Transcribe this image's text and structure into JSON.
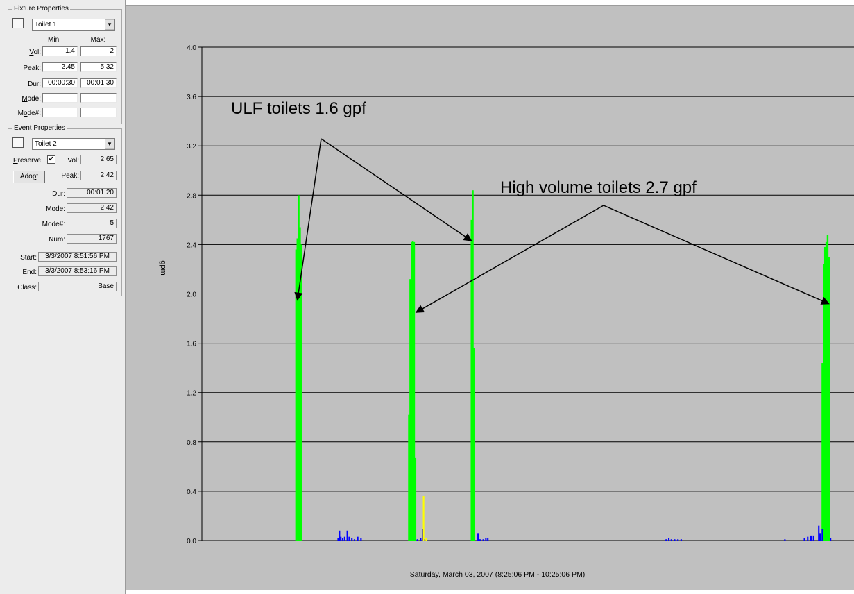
{
  "fixture_properties": {
    "title": "Fixture Properties",
    "selected_fixture": "Toilet 1",
    "min_header": "Min:",
    "max_header": "Max:",
    "vol_label": "Vol:",
    "vol_min": "1.4",
    "vol_max": "2",
    "peak_label": "Peak:",
    "peak_min": "2.45",
    "peak_max": "5.32",
    "dur_label": "Dur:",
    "dur_min": "00:00:30",
    "dur_max": "00:01:30",
    "mode_label": "Mode:",
    "mode_min": "",
    "mode_max": "",
    "mode_num_label": "Mode#:",
    "mode_num_min": "",
    "mode_num_max": ""
  },
  "event_properties": {
    "title": "Event Properties",
    "selected_event": "Toilet 2",
    "preserve_label": "Preserve",
    "preserve_checked": true,
    "vol_label": "Vol:",
    "vol": "2.65",
    "adopt_label": "Adopt",
    "peak_label": "Peak:",
    "peak": "2.42",
    "dur_label": "Dur:",
    "dur": "00:01:20",
    "mode_label": "Mode:",
    "mode": "2.42",
    "mode_num_label": "Mode#:",
    "mode_num": "5",
    "num_label": "Num:",
    "num": "1767",
    "start_label": "Start:",
    "start": "3/3/2007 8:51:56 PM",
    "end_label": "End:",
    "end": "3/3/2007 8:53:16 PM",
    "class_label": "Class:",
    "class": "Base"
  },
  "chart_data": {
    "type": "bar",
    "xlabel": "Saturday, March 03, 2007 (8:25:06 PM - 10:25:06 PM)",
    "ylabel": "gpm",
    "ylim": [
      0,
      4.0
    ],
    "yticks": [
      "0.0",
      "0.4",
      "0.8",
      "1.2",
      "1.6",
      "2.0",
      "2.4",
      "2.8",
      "3.2",
      "3.6",
      "4.0"
    ],
    "grid": true,
    "background": "#c0c0c0",
    "colors": {
      "toilet": "#00ff00",
      "other": "#0000ff",
      "highlight": "#ffff00"
    },
    "series": [
      {
        "class": "toilet",
        "color": "#00ff00",
        "points": [
          [
            0.1445,
            2.36
          ],
          [
            0.1465,
            2.45
          ],
          [
            0.1485,
            2.8
          ],
          [
            0.1505,
            2.54
          ],
          [
            0.1525,
            2.4
          ],
          [
            0.3175,
            1.02
          ],
          [
            0.3195,
            2.12
          ],
          [
            0.3215,
            2.42
          ],
          [
            0.3235,
            2.43
          ],
          [
            0.3255,
            2.42
          ],
          [
            0.3275,
            0.67
          ],
          [
            0.4135,
            2.6
          ],
          [
            0.4155,
            2.84
          ],
          [
            0.4175,
            1.56
          ],
          [
            0.9515,
            1.44
          ],
          [
            0.9535,
            2.24
          ],
          [
            0.9555,
            2.38
          ],
          [
            0.9575,
            2.42
          ],
          [
            0.9595,
            2.48
          ],
          [
            0.9615,
            2.3
          ]
        ]
      },
      {
        "class": "other",
        "color": "#0000ff",
        "points": [
          [
            0.209,
            0.02
          ],
          [
            0.211,
            0.08
          ],
          [
            0.213,
            0.03
          ],
          [
            0.216,
            0.02
          ],
          [
            0.219,
            0.03
          ],
          [
            0.223,
            0.08
          ],
          [
            0.226,
            0.03
          ],
          [
            0.23,
            0.02
          ],
          [
            0.234,
            0.01
          ],
          [
            0.239,
            0.03
          ],
          [
            0.244,
            0.02
          ],
          [
            0.3305,
            0.01
          ],
          [
            0.3355,
            0.02
          ],
          [
            0.3385,
            0.09
          ],
          [
            0.3415,
            0.01
          ],
          [
            0.4235,
            0.06
          ],
          [
            0.4265,
            0.01
          ],
          [
            0.4315,
            0.01
          ],
          [
            0.4355,
            0.02
          ],
          [
            0.4385,
            0.02
          ],
          [
            0.712,
            0.01
          ],
          [
            0.716,
            0.02
          ],
          [
            0.72,
            0.01
          ],
          [
            0.725,
            0.01
          ],
          [
            0.73,
            0.01
          ],
          [
            0.735,
            0.01
          ],
          [
            0.894,
            0.01
          ],
          [
            0.924,
            0.02
          ],
          [
            0.929,
            0.03
          ],
          [
            0.934,
            0.04
          ],
          [
            0.938,
            0.04
          ],
          [
            0.946,
            0.12
          ],
          [
            0.948,
            0.06
          ],
          [
            0.9515,
            0.09
          ],
          [
            0.964,
            0.02
          ]
        ]
      },
      {
        "class": "highlight",
        "color": "#ffff00",
        "points": [
          [
            0.34,
            0.36
          ],
          [
            0.344,
            0.02
          ]
        ]
      }
    ],
    "annotations": [
      {
        "text": "ULF toilets 1.6 gpf",
        "arrows_to": [
          [
            0.1465,
            1.95
          ],
          [
            0.4135,
            2.43
          ]
        ]
      },
      {
        "text": "High volume toilets 2.7 gpf",
        "arrows_to": [
          [
            0.3285,
            1.85
          ],
          [
            0.9615,
            1.92
          ]
        ]
      }
    ]
  }
}
